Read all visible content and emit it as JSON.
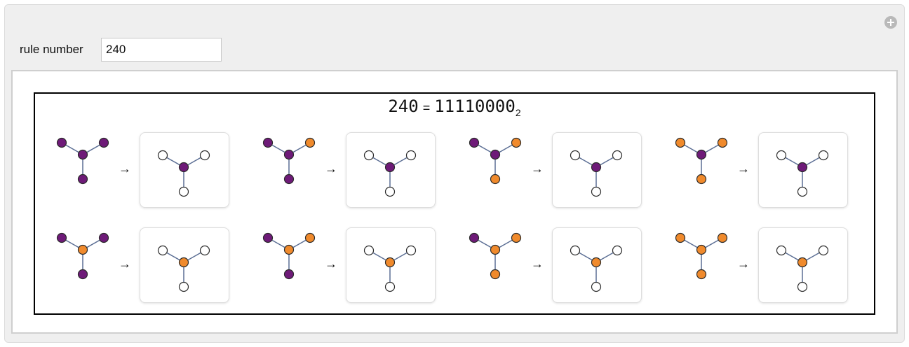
{
  "control": {
    "label": "rule number",
    "value": "240"
  },
  "title": {
    "number": "240",
    "equals": "=",
    "binary": "11110000",
    "base": "2"
  },
  "colors": {
    "purple": "#6e1a78",
    "orange": "#f08a2c",
    "empty": "#ffffff",
    "edge": "#5b6e94",
    "stroke": "#2b2b2b"
  },
  "rules": [
    {
      "input": {
        "top_left": "purple",
        "top_right": "purple",
        "center": "purple",
        "bottom": "purple"
      },
      "arrow": "→",
      "output": {
        "center": "purple"
      }
    },
    {
      "input": {
        "top_left": "purple",
        "top_right": "orange",
        "center": "purple",
        "bottom": "purple"
      },
      "arrow": "→",
      "output": {
        "center": "purple"
      }
    },
    {
      "input": {
        "top_left": "purple",
        "top_right": "orange",
        "center": "purple",
        "bottom": "orange"
      },
      "arrow": "→",
      "output": {
        "center": "purple"
      }
    },
    {
      "input": {
        "top_left": "orange",
        "top_right": "orange",
        "center": "purple",
        "bottom": "orange"
      },
      "arrow": "→",
      "output": {
        "center": "purple"
      }
    },
    {
      "input": {
        "top_left": "purple",
        "top_right": "purple",
        "center": "orange",
        "bottom": "purple"
      },
      "arrow": "→",
      "output": {
        "center": "orange"
      }
    },
    {
      "input": {
        "top_left": "purple",
        "top_right": "orange",
        "center": "orange",
        "bottom": "purple"
      },
      "arrow": "→",
      "output": {
        "center": "orange"
      }
    },
    {
      "input": {
        "top_left": "purple",
        "top_right": "orange",
        "center": "orange",
        "bottom": "orange"
      },
      "arrow": "→",
      "output": {
        "center": "orange"
      }
    },
    {
      "input": {
        "top_left": "orange",
        "top_right": "orange",
        "center": "orange",
        "bottom": "orange"
      },
      "arrow": "→",
      "output": {
        "center": "orange"
      }
    }
  ]
}
